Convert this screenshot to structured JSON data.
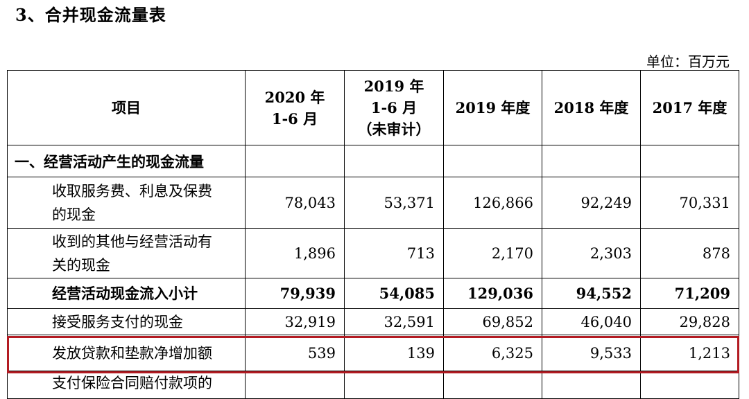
{
  "title": "3、合并现金流量表",
  "unit": "单位：百万元",
  "header": {
    "item": "项目",
    "c1a": "2020 年",
    "c1b": "1-6 月",
    "c2a": "2019 年",
    "c2b": "1-6 月",
    "c2c": "（未审计）",
    "c3": "2019 年度",
    "c4": "2018 年度",
    "c5": "2017 年度"
  },
  "rows": [
    {
      "label": "一、经营活动产生的现金流量",
      "values": [
        "",
        "",
        "",
        "",
        ""
      ]
    },
    {
      "label_line1": "收取服务费、利息及保费",
      "label_line2": "的现金",
      "values": [
        "78,043",
        "53,371",
        "126,866",
        "92,249",
        "70,331"
      ]
    },
    {
      "label_line1": "收到的其他与经营活动有",
      "label_line2": "关的现金",
      "values": [
        "1,896",
        "713",
        "2,170",
        "2,303",
        "878"
      ]
    },
    {
      "label": "经营活动现金流入小计",
      "values": [
        "79,939",
        "54,085",
        "129,036",
        "94,552",
        "71,209"
      ]
    },
    {
      "label": "接受服务支付的现金",
      "values": [
        "32,919",
        "32,591",
        "69,852",
        "46,040",
        "29,828"
      ]
    },
    {
      "label": "发放贷款和垫款净增加额",
      "values": [
        "539",
        "139",
        "6,325",
        "9,533",
        "1,213"
      ]
    },
    {
      "label": "支付保险合同赔付款项的",
      "values": [
        "",
        "",
        "",
        "",
        ""
      ]
    }
  ],
  "highlight_color": "#b31b22"
}
